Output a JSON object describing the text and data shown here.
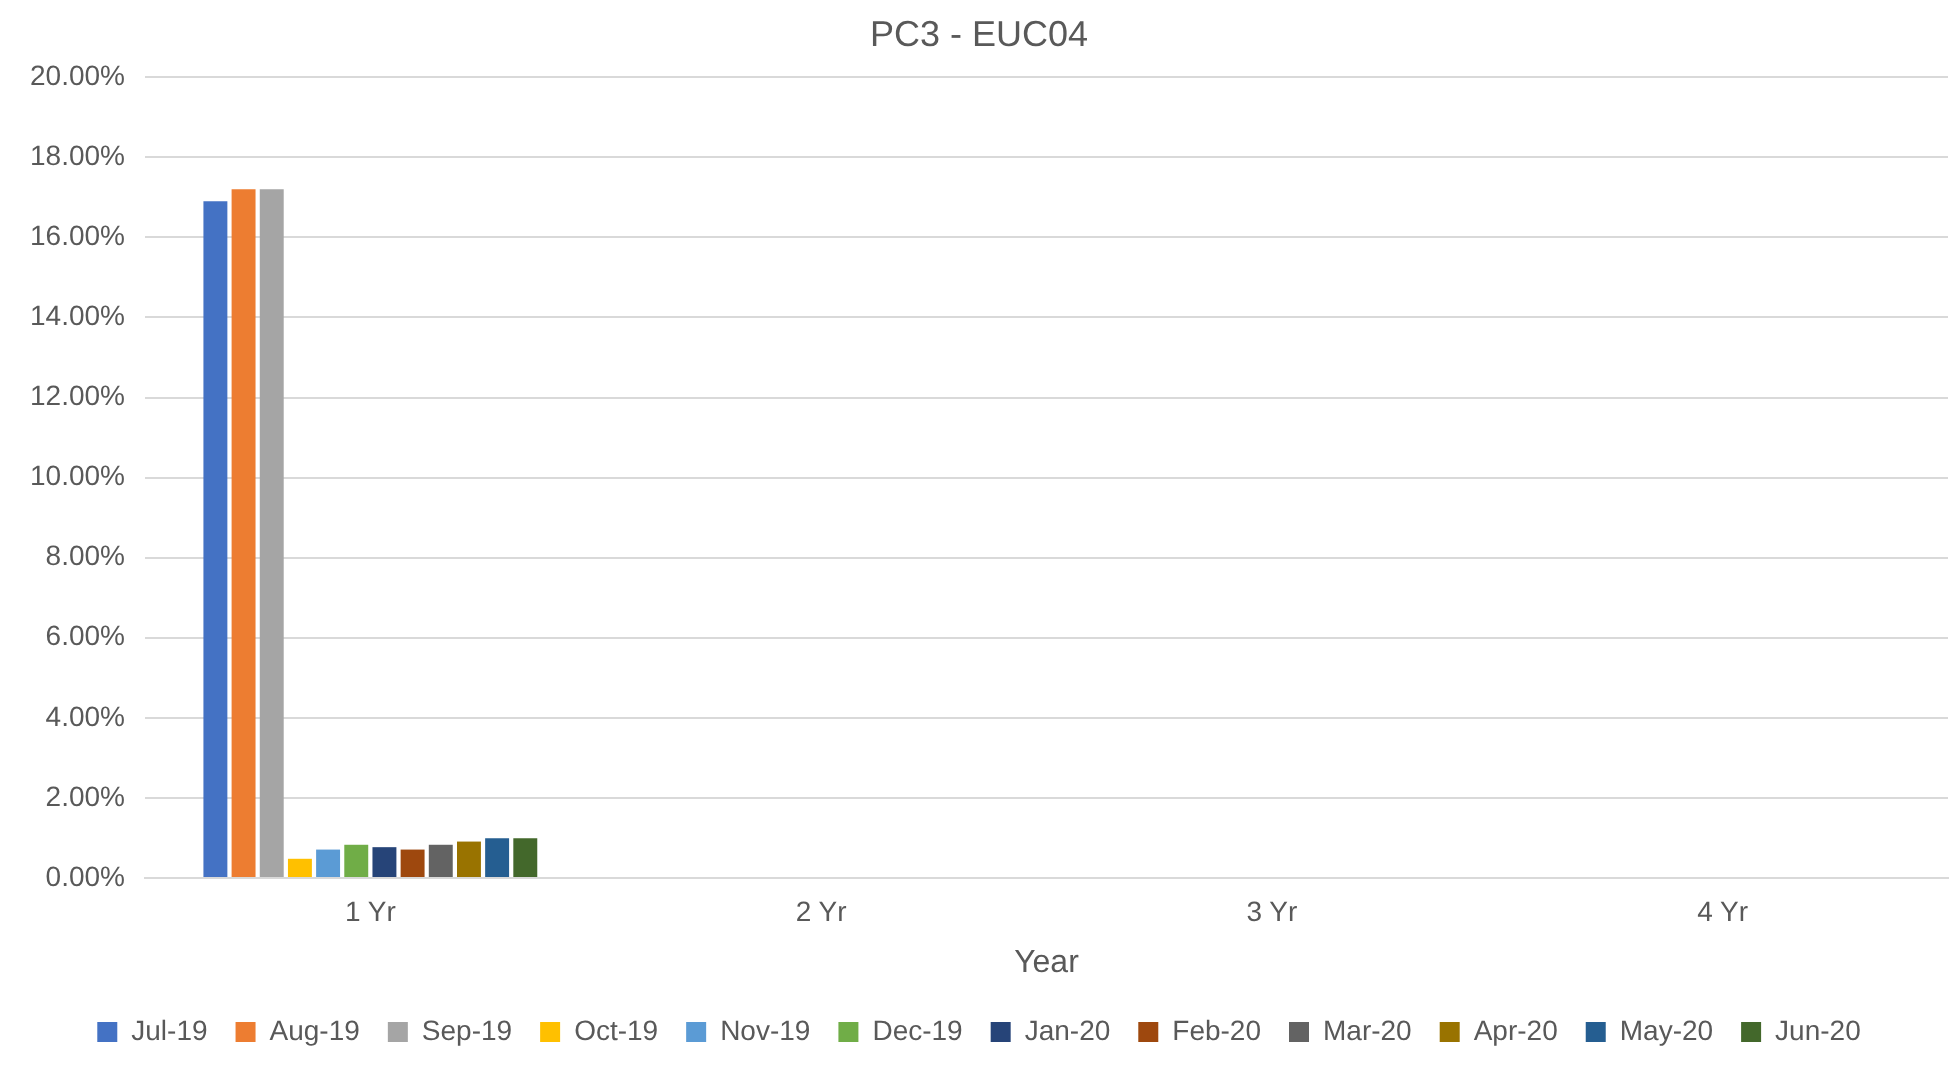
{
  "chart_data": {
    "type": "bar",
    "title": "PC3 - EUC04",
    "xlabel": "Year",
    "categories": [
      "1 Yr",
      "2 Yr",
      "3 Yr",
      "4 Yr"
    ],
    "series": [
      {
        "name": "Jul-19",
        "color": "#4472c4",
        "values": [
          16.9,
          null,
          null,
          null
        ]
      },
      {
        "name": "Aug-19",
        "color": "#ed7d31",
        "values": [
          17.2,
          null,
          null,
          null
        ]
      },
      {
        "name": "Sep-19",
        "color": "#a5a5a5",
        "values": [
          17.2,
          null,
          null,
          null
        ]
      },
      {
        "name": "Oct-19",
        "color": "#ffc000",
        "values": [
          0.48,
          null,
          null,
          null
        ]
      },
      {
        "name": "Nov-19",
        "color": "#5b9bd5",
        "values": [
          0.71,
          null,
          null,
          null
        ]
      },
      {
        "name": "Dec-19",
        "color": "#70ad47",
        "values": [
          0.83,
          null,
          null,
          null
        ]
      },
      {
        "name": "Jan-20",
        "color": "#264478",
        "values": [
          0.77,
          null,
          null,
          null
        ]
      },
      {
        "name": "Feb-20",
        "color": "#9e480e",
        "values": [
          0.71,
          null,
          null,
          null
        ]
      },
      {
        "name": "Mar-20",
        "color": "#636363",
        "values": [
          0.83,
          null,
          null,
          null
        ]
      },
      {
        "name": "Apr-20",
        "color": "#997300",
        "values": [
          0.91,
          null,
          null,
          null
        ]
      },
      {
        "name": "May-20",
        "color": "#255e91",
        "values": [
          0.99,
          null,
          null,
          null
        ]
      },
      {
        "name": "Jun-20",
        "color": "#43682b",
        "values": [
          0.99,
          null,
          null,
          null
        ]
      }
    ],
    "ylim": [
      0,
      20
    ],
    "yticks": [
      {
        "value": 0,
        "label": "0.00%"
      },
      {
        "value": 2,
        "label": "2.00%"
      },
      {
        "value": 4,
        "label": "4.00%"
      },
      {
        "value": 6,
        "label": "6.00%"
      },
      {
        "value": 8,
        "label": "8.00%"
      },
      {
        "value": 10,
        "label": "10.00%"
      },
      {
        "value": 12,
        "label": "12.00%"
      },
      {
        "value": 14,
        "label": "14.00%"
      },
      {
        "value": 16,
        "label": "16.00%"
      },
      {
        "value": 18,
        "label": "18.00%"
      },
      {
        "value": 20,
        "label": "20.00%"
      }
    ],
    "grid": "y",
    "legend": "bottom"
  }
}
